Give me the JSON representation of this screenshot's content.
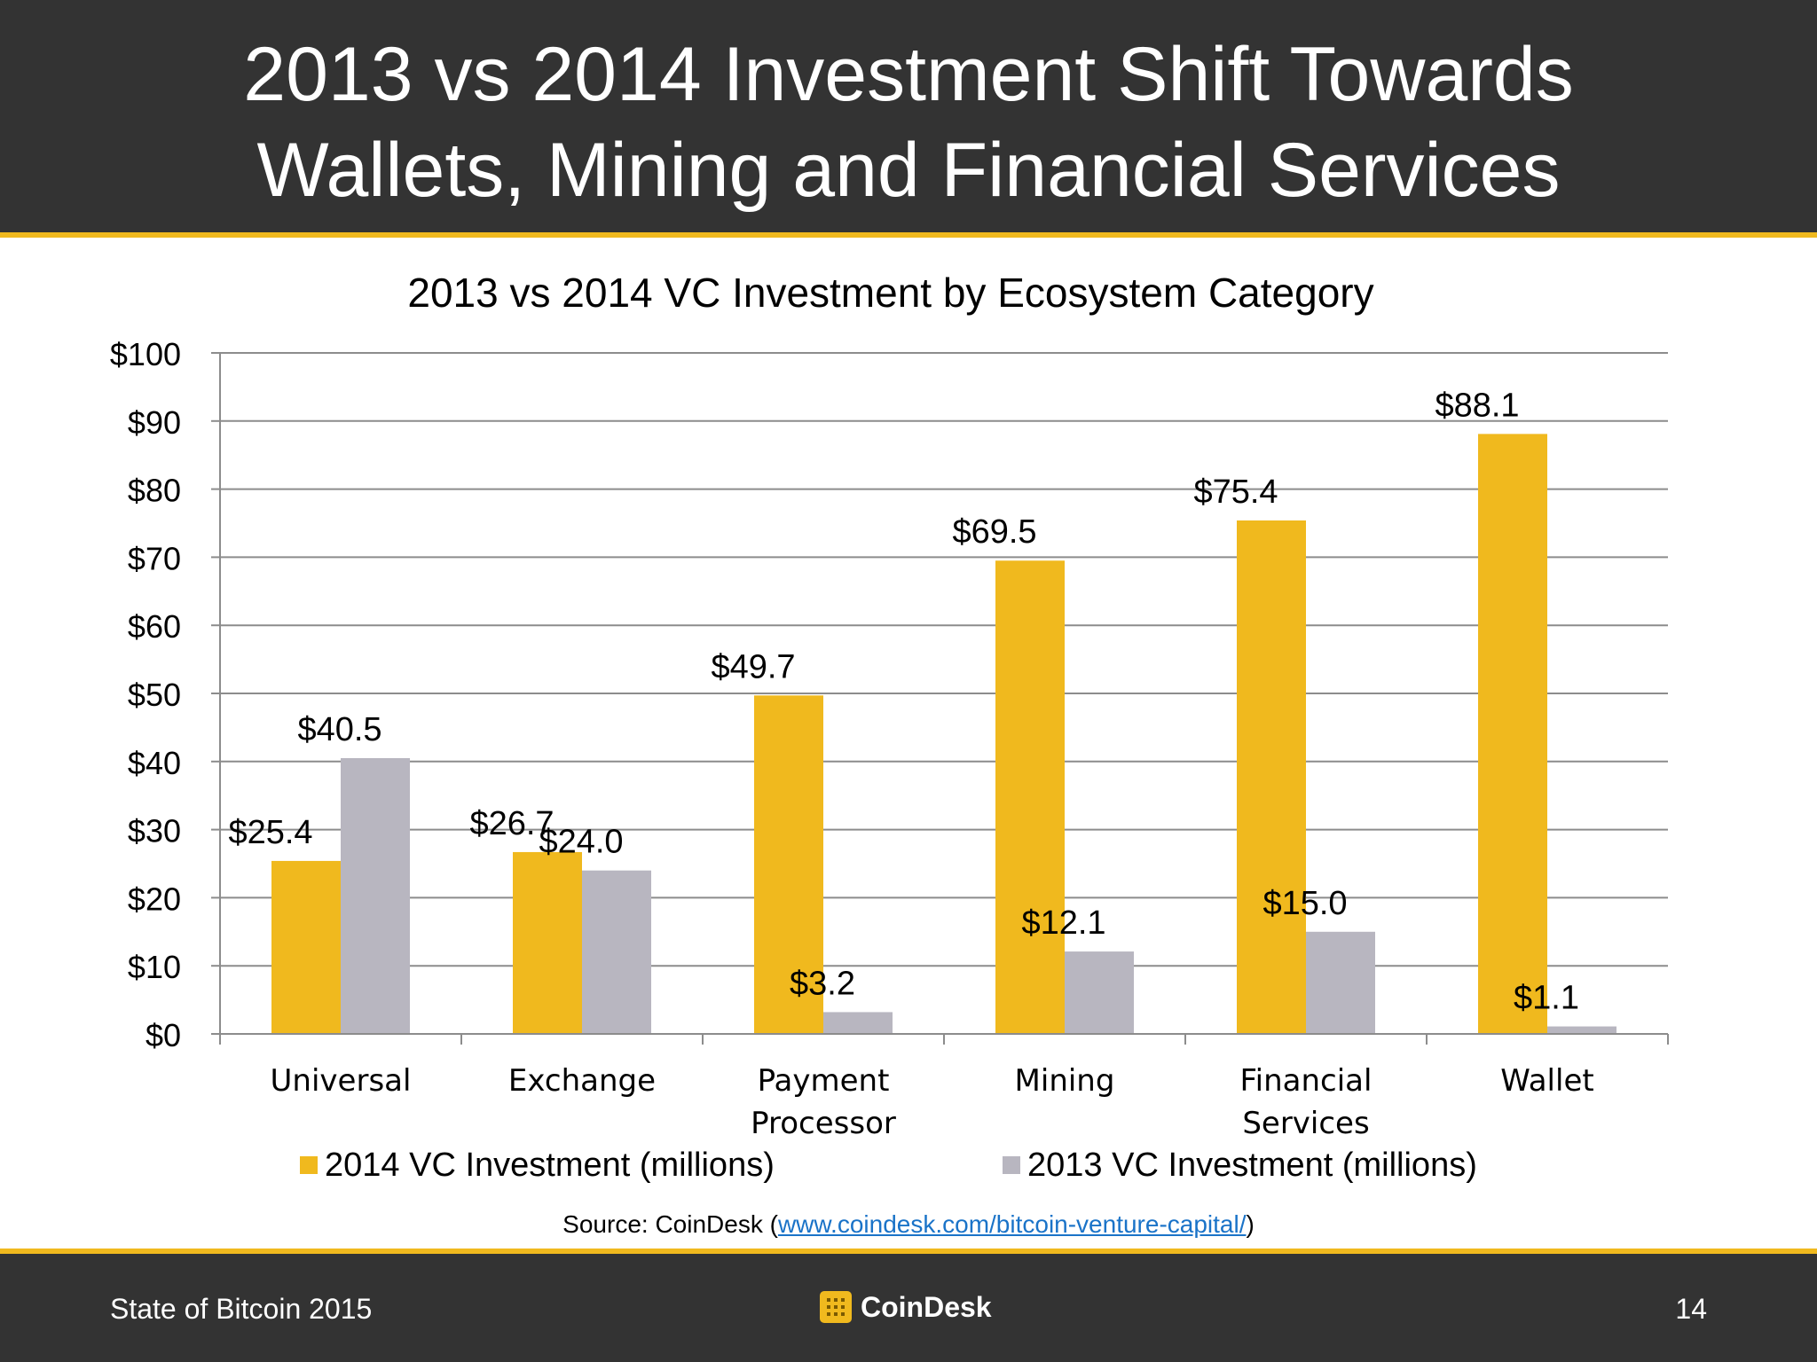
{
  "slide": {
    "title_line1": "2013 vs 2014 Investment Shift Towards",
    "title_line2": "Wallets, Mining and Financial Services"
  },
  "source": {
    "prefix": "Source: CoinDesk (",
    "link_text": "www.coindesk.com/bitcoin-venture-capital/",
    "suffix": ")"
  },
  "footer": {
    "left_text": "State of Bitcoin 2015",
    "logo_text": "CoinDesk",
    "page_number": "14"
  },
  "colors": {
    "header_bg": "#333333",
    "accent_yellow": "#f0b91e",
    "series_2014": "#f0b91e",
    "series_2013": "#b8b6c0",
    "link": "#1a73c8"
  },
  "chart_data": {
    "type": "bar",
    "title": "2013 vs 2014 VC Investment by Ecosystem Category",
    "categories": [
      [
        "Universal"
      ],
      [
        "Exchange"
      ],
      [
        "Payment",
        "Processor"
      ],
      [
        "Mining"
      ],
      [
        "Financial",
        "Services"
      ],
      [
        "Wallet"
      ]
    ],
    "series": [
      {
        "name": "2014 VC Investment (millions)",
        "color": "#f0b91e",
        "values": [
          25.4,
          26.7,
          49.7,
          69.5,
          75.4,
          88.1
        ],
        "labels": [
          "$25.4",
          "$26.7",
          "$49.7",
          "$69.5",
          "$75.4",
          "$88.1"
        ]
      },
      {
        "name": "2013 VC Investment (millions)",
        "color": "#b8b6c0",
        "values": [
          40.5,
          24.0,
          3.2,
          12.1,
          15.0,
          1.1
        ],
        "labels": [
          "$40.5",
          "$24.0",
          "$3.2",
          "$12.1",
          "$15.0",
          "$1.1"
        ]
      }
    ],
    "ylim": [
      0,
      100
    ],
    "yticks": [
      0,
      10,
      20,
      30,
      40,
      50,
      60,
      70,
      80,
      90,
      100
    ],
    "ytick_labels": [
      "$0",
      "$10",
      "$20",
      "$30",
      "$40",
      "$50",
      "$60",
      "$70",
      "$80",
      "$90",
      "$100"
    ],
    "grid": true,
    "legend_position": "bottom"
  }
}
